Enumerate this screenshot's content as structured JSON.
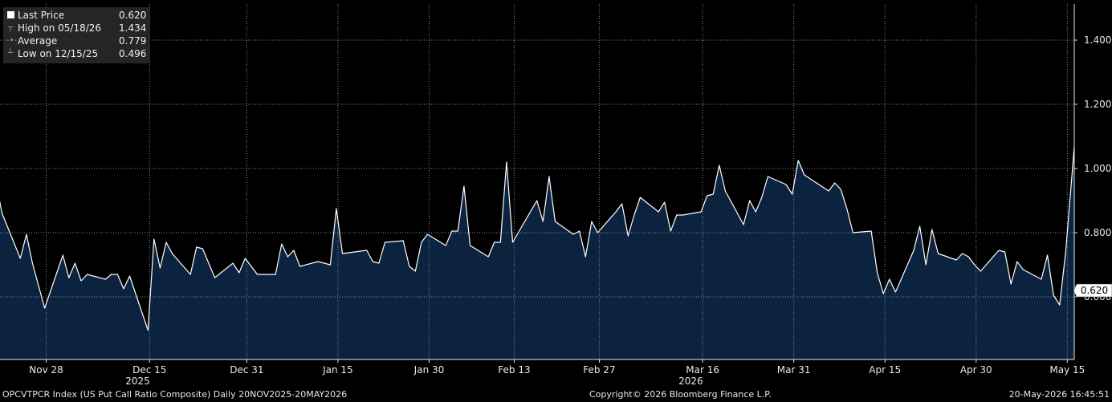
{
  "chart_data": {
    "type": "area",
    "title": "OPCVTPCR Index (US Put Call Ratio Composite) Daily 20NOV2025-20MAY2026",
    "xlabel": "",
    "ylabel": "",
    "x_ticks": [
      "Nov 28",
      "Dec 15",
      "Dec 31",
      "Jan 15",
      "Jan 30",
      "Feb 13",
      "Feb 27",
      "Mar 16",
      "Mar 31",
      "Apr 15",
      "Apr 30",
      "May 15"
    ],
    "year_labels": [
      {
        "label": "2025",
        "near": "Dec 15"
      },
      {
        "label": "2026",
        "near": "Mar 16"
      }
    ],
    "y_ticks": [
      "0.600",
      "0.800",
      "1.000",
      "1.200",
      "1.400"
    ],
    "ylim": [
      0.4,
      1.6
    ],
    "last_value_label": "0.620",
    "grid": true,
    "legend_position": "top-left",
    "series": [
      {
        "name": "Last Price",
        "x": [
          "2025-11-20",
          "2025-11-21",
          "2025-11-24",
          "2025-11-25",
          "2025-11-26",
          "2025-11-28",
          "2025-12-01",
          "2025-12-02",
          "2025-12-03",
          "2025-12-04",
          "2025-12-05",
          "2025-12-08",
          "2025-12-09",
          "2025-12-10",
          "2025-12-11",
          "2025-12-12",
          "2025-12-15",
          "2025-12-16",
          "2025-12-17",
          "2025-12-18",
          "2025-12-19",
          "2025-12-22",
          "2025-12-23",
          "2025-12-24",
          "2025-12-26",
          "2025-12-29",
          "2025-12-30",
          "2025-12-31",
          "2026-01-02",
          "2026-01-05",
          "2026-01-06",
          "2026-01-07",
          "2026-01-08",
          "2026-01-09",
          "2026-01-12",
          "2026-01-13",
          "2026-01-14",
          "2026-01-15",
          "2026-01-16",
          "2026-01-20",
          "2026-01-21",
          "2026-01-22",
          "2026-01-23",
          "2026-01-26",
          "2026-01-27",
          "2026-01-28",
          "2026-01-29",
          "2026-01-30",
          "2026-02-02",
          "2026-02-03",
          "2026-02-04",
          "2026-02-05",
          "2026-02-06",
          "2026-02-09",
          "2026-02-10",
          "2026-02-11",
          "2026-02-12",
          "2026-02-13",
          "2026-02-17",
          "2026-02-18",
          "2026-02-19",
          "2026-02-20",
          "2026-02-23",
          "2026-02-24",
          "2026-02-25",
          "2026-02-26",
          "2026-02-27",
          "2026-03-02",
          "2026-03-03",
          "2026-03-04",
          "2026-03-05",
          "2026-03-06",
          "2026-03-09",
          "2026-03-10",
          "2026-03-11",
          "2026-03-12",
          "2026-03-13",
          "2026-03-16",
          "2026-03-17",
          "2026-03-18",
          "2026-03-19",
          "2026-03-20",
          "2026-03-23",
          "2026-03-24",
          "2026-03-25",
          "2026-03-26",
          "2026-03-27",
          "2026-03-30",
          "2026-03-31",
          "2026-04-01",
          "2026-04-02",
          "2026-04-06",
          "2026-04-07",
          "2026-04-08",
          "2026-04-09",
          "2026-04-10",
          "2026-04-13",
          "2026-04-14",
          "2026-04-15",
          "2026-04-16",
          "2026-04-17",
          "2026-04-20",
          "2026-04-21",
          "2026-04-22",
          "2026-04-23",
          "2026-04-24",
          "2026-04-27",
          "2026-04-28",
          "2026-04-29",
          "2026-04-30",
          "2026-05-01",
          "2026-05-04",
          "2026-05-05",
          "2026-05-06",
          "2026-05-07",
          "2026-05-08",
          "2026-05-11",
          "2026-05-12",
          "2026-05-13",
          "2026-05-14",
          "2026-05-15",
          "2026-05-18",
          "2026-05-19",
          "2026-05-20"
        ],
        "values": [
          0.955,
          0.86,
          0.72,
          0.795,
          0.705,
          0.565,
          0.73,
          0.66,
          0.705,
          0.65,
          0.67,
          0.655,
          0.67,
          0.67,
          0.625,
          0.665,
          0.496,
          0.78,
          0.69,
          0.77,
          0.735,
          0.67,
          0.755,
          0.75,
          0.66,
          0.705,
          0.675,
          0.72,
          0.67,
          0.67,
          0.765,
          0.725,
          0.745,
          0.695,
          0.71,
          0.705,
          0.7,
          0.875,
          0.735,
          0.745,
          0.71,
          0.705,
          0.77,
          0.775,
          0.695,
          0.68,
          0.77,
          0.795,
          0.76,
          0.805,
          0.805,
          0.945,
          0.76,
          0.725,
          0.77,
          0.77,
          1.02,
          0.77,
          0.9,
          0.835,
          0.975,
          0.835,
          0.795,
          0.805,
          0.725,
          0.835,
          0.8,
          0.865,
          0.89,
          0.79,
          0.855,
          0.91,
          0.865,
          0.895,
          0.805,
          0.855,
          0.855,
          0.865,
          0.915,
          0.92,
          1.01,
          0.93,
          0.825,
          0.9,
          0.865,
          0.91,
          0.975,
          0.95,
          0.92,
          1.025,
          0.98,
          0.93,
          0.955,
          0.935,
          0.875,
          0.8,
          0.805,
          0.675,
          0.61,
          0.655,
          0.615,
          0.745,
          0.82,
          0.7,
          0.81,
          0.735,
          0.715,
          0.735,
          0.725,
          0.7,
          0.68,
          0.745,
          0.74,
          0.64,
          0.71,
          0.685,
          0.655,
          0.73,
          0.605,
          0.575,
          0.74,
          1.434,
          0.775,
          0.62
        ]
      }
    ]
  },
  "legend": {
    "items": [
      {
        "symbol": "swatch",
        "label": "Last Price",
        "value": "0.620"
      },
      {
        "symbol": "high",
        "label": "High on 05/18/26",
        "value": "1.434"
      },
      {
        "symbol": "average",
        "label": "Average",
        "value": "0.779"
      },
      {
        "symbol": "low",
        "label": "Low on 12/15/25",
        "value": "0.496"
      }
    ]
  },
  "footer": {
    "left": "OPCVTPCR Index (US Put Call Ratio Composite) Daily 20NOV2025-20MAY2026",
    "center": "Copyright© 2026 Bloomberg Finance L.P.",
    "right": "20-May-2026 16:45:51"
  },
  "colors": {
    "background": "#000000",
    "area_fill": "#0c2340",
    "line": "#ffffff",
    "grid": "#8a8a8a",
    "axis_text": "#e8e8e8",
    "last_value_box": "#ffffff"
  }
}
